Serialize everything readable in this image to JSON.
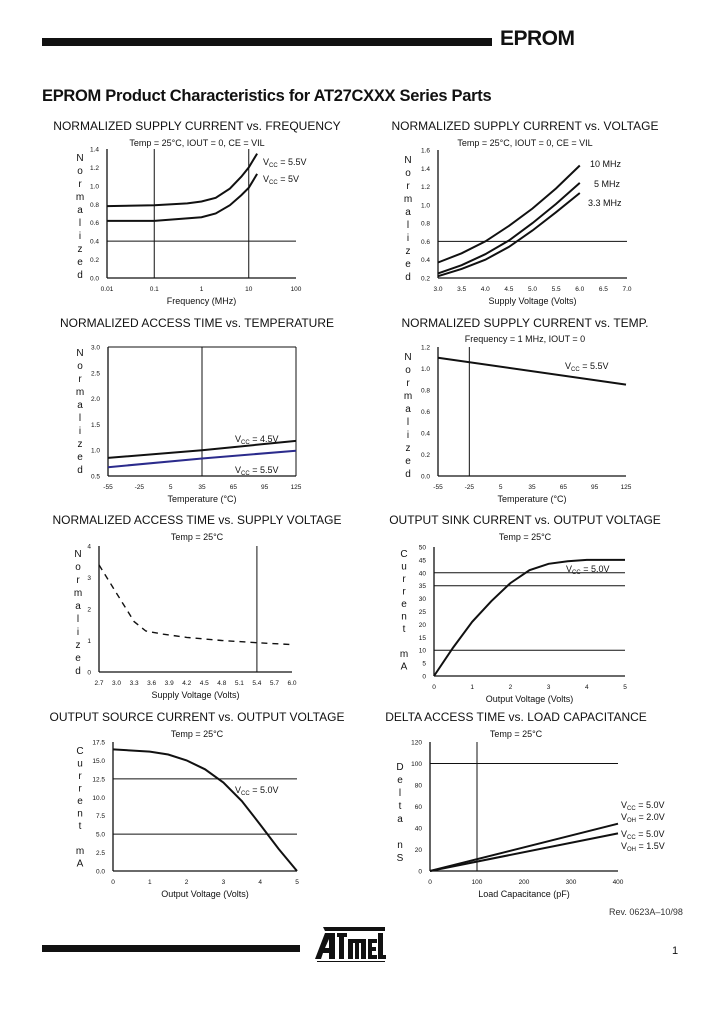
{
  "header": {
    "title": "EPROM"
  },
  "section_title": "EPROM Product Characteristics for AT27CXXX Series Parts",
  "footer": {
    "revision": "Rev. 0623A–10/98",
    "page_number": "1",
    "logo_text": "ATMEL"
  },
  "chart_data": [
    {
      "type": "line",
      "title": "NORMALIZED SUPPLY CURRENT vs. FREQUENCY",
      "subtitle": "Temp = 25°C, IOUT = 0, CE = VIL",
      "xlabel": "Frequency (MHz)",
      "ylabel": "Normalized",
      "xscale": "log",
      "xlim": [
        0.01,
        100
      ],
      "ylim": [
        0.0,
        1.4
      ],
      "xticks": [
        0.01,
        0.1,
        1,
        10,
        100
      ],
      "xtick_labels": [
        "0.01",
        "0.1",
        "1",
        "10",
        "100"
      ],
      "yticks": [
        0,
        0.2,
        0.4,
        0.6,
        0.8,
        1.0,
        1.2,
        1.4
      ],
      "ytick_labels": [
        "0.0",
        "0.2",
        "0.4",
        "0.6",
        "0.8",
        "1.0",
        "1.2",
        "1.4"
      ],
      "grid_x": [
        0.1,
        10
      ],
      "grid_y": [
        0.4
      ],
      "box": false,
      "series": [
        {
          "name": [
            "V",
            "CC",
            " = 5.5V"
          ],
          "points": [
            [
              0.01,
              0.78
            ],
            [
              0.1,
              0.79
            ],
            [
              0.5,
              0.81
            ],
            [
              1,
              0.83
            ],
            [
              2,
              0.87
            ],
            [
              4,
              0.97
            ],
            [
              7,
              1.1
            ],
            [
              10,
              1.2
            ],
            [
              15,
              1.35
            ]
          ]
        },
        {
          "name": [
            "V",
            "CC",
            " = 5V"
          ],
          "points": [
            [
              0.01,
              0.62
            ],
            [
              0.1,
              0.62
            ],
            [
              1,
              0.66
            ],
            [
              2,
              0.7
            ],
            [
              4,
              0.79
            ],
            [
              7,
              0.9
            ],
            [
              10,
              0.98
            ],
            [
              15,
              1.13
            ]
          ]
        }
      ]
    },
    {
      "type": "line",
      "title": "NORMALIZED SUPPLY CURRENT vs. VOLTAGE",
      "subtitle": "Temp = 25°C, IOUT = 0, CE = VIL",
      "xlabel": "Supply Voltage (Volts)",
      "ylabel": "Normalized",
      "xscale": "linear",
      "xlim": [
        3.0,
        7.0
      ],
      "ylim": [
        0.2,
        1.6
      ],
      "xticks": [
        3.0,
        3.5,
        4.0,
        4.5,
        5.0,
        5.5,
        6.0,
        6.5,
        7.0
      ],
      "xtick_labels": [
        "3.0",
        "3.5",
        "4.0",
        "4.5",
        "5.0",
        "5.5",
        "6.0",
        "6.5",
        "7.0"
      ],
      "yticks": [
        0.2,
        0.4,
        0.6,
        0.8,
        1.0,
        1.2,
        1.4,
        1.6
      ],
      "ytick_labels": [
        "0.2",
        "0.4",
        "0.6",
        "0.8",
        "1.0",
        "1.2",
        "1.4",
        "1.6"
      ],
      "grid_x": [],
      "grid_y": [
        0.6
      ],
      "box": false,
      "series": [
        {
          "name": [
            "10 MHz"
          ],
          "points": [
            [
              3.0,
              0.37
            ],
            [
              3.5,
              0.47
            ],
            [
              4.0,
              0.6
            ],
            [
              4.5,
              0.77
            ],
            [
              5.0,
              0.96
            ],
            [
              5.5,
              1.18
            ],
            [
              6.0,
              1.43
            ]
          ]
        },
        {
          "name": [
            "5 MHz"
          ],
          "points": [
            [
              3.0,
              0.25
            ],
            [
              3.5,
              0.34
            ],
            [
              4.0,
              0.46
            ],
            [
              4.5,
              0.61
            ],
            [
              5.0,
              0.8
            ],
            [
              5.5,
              1.01
            ],
            [
              6.0,
              1.24
            ]
          ]
        },
        {
          "name": [
            "3.3 MHz"
          ],
          "points": [
            [
              3.0,
              0.22
            ],
            [
              3.5,
              0.3
            ],
            [
              4.0,
              0.4
            ],
            [
              4.5,
              0.54
            ],
            [
              5.0,
              0.72
            ],
            [
              5.5,
              0.92
            ],
            [
              6.0,
              1.13
            ]
          ]
        }
      ]
    },
    {
      "type": "line",
      "title": "NORMALIZED ACCESS TIME vs. TEMPERATURE",
      "subtitle": "",
      "xlabel": "Temperature (°C)",
      "ylabel": "Normalized",
      "xscale": "linear",
      "xlim": [
        -55,
        125
      ],
      "ylim": [
        0.5,
        3.0
      ],
      "xticks": [
        -55,
        -25,
        5,
        35,
        65,
        95,
        125
      ],
      "xtick_labels": [
        "-55",
        "-25",
        "5",
        "35",
        "65",
        "95",
        "125"
      ],
      "yticks": [
        0.5,
        1.0,
        1.5,
        2.0,
        2.5,
        3.0
      ],
      "ytick_labels": [
        "0.5",
        "1.0",
        "1.5",
        "2.0",
        "2.5",
        "3.0"
      ],
      "grid_x": [
        35
      ],
      "grid_y": [],
      "box": true,
      "series": [
        {
          "name": [
            "V",
            "CC",
            " = 4.5V"
          ],
          "color": "#111111",
          "points": [
            [
              -55,
              0.85
            ],
            [
              35,
              1.0
            ],
            [
              125,
              1.18
            ]
          ]
        },
        {
          "name": [
            "V",
            "CC",
            " = 5.5V"
          ],
          "color": "#2b2b8c",
          "points": [
            [
              -55,
              0.67
            ],
            [
              35,
              0.84
            ],
            [
              125,
              0.99
            ]
          ]
        }
      ]
    },
    {
      "type": "line",
      "title": "NORMALIZED SUPPLY CURRENT vs. TEMP.",
      "subtitle": "Frequency = 1 MHz, IOUT = 0",
      "xlabel": "Temperature (°C)",
      "ylabel": "Normalized",
      "xscale": "linear",
      "xlim": [
        -55,
        125
      ],
      "ylim": [
        0.0,
        1.2
      ],
      "xticks": [
        -55,
        -25,
        5,
        35,
        65,
        95,
        125
      ],
      "xtick_labels": [
        "-55",
        "-25",
        "5",
        "35",
        "65",
        "95",
        "125"
      ],
      "yticks": [
        0,
        0.2,
        0.4,
        0.6,
        0.8,
        1.0,
        1.2
      ],
      "ytick_labels": [
        "0.0",
        "0.2",
        "0.4",
        "0.6",
        "0.8",
        "1.0",
        "1.2"
      ],
      "grid_x": [
        -25
      ],
      "grid_y": [],
      "box": false,
      "series": [
        {
          "name": [
            "V",
            "CC",
            " = 5.5V"
          ],
          "points": [
            [
              -55,
              1.1
            ],
            [
              125,
              0.85
            ]
          ]
        }
      ]
    },
    {
      "type": "line",
      "title": "NORMALIZED ACCESS TIME vs. SUPPLY VOLTAGE",
      "subtitle": "Temp = 25°C",
      "xlabel": "Supply Voltage (Volts)",
      "ylabel": "Normalized",
      "xscale": "linear",
      "xlim": [
        2.7,
        6.0
      ],
      "ylim": [
        0,
        4
      ],
      "xticks": [
        2.7,
        3.0,
        3.3,
        3.6,
        3.9,
        4.2,
        4.5,
        4.8,
        5.1,
        5.4,
        5.7,
        6.0
      ],
      "xtick_labels": [
        "2.7",
        "3.0",
        "3.3",
        "3.6",
        "3.9",
        "4.2",
        "4.5",
        "4.8",
        "5.1",
        "5.4",
        "5.7",
        "6.0"
      ],
      "yticks": [
        0,
        1,
        2,
        3,
        4
      ],
      "ytick_labels": [
        "0",
        "1",
        "2",
        "3",
        "4"
      ],
      "grid_x": [
        5.4
      ],
      "grid_y": [],
      "box": false,
      "dashed": true,
      "series": [
        {
          "points": [
            [
              2.7,
              3.4
            ],
            [
              2.9,
              2.8
            ],
            [
              3.1,
              2.2
            ],
            [
              3.3,
              1.6
            ],
            [
              3.5,
              1.3
            ],
            [
              3.8,
              1.2
            ],
            [
              4.2,
              1.1
            ],
            [
              4.8,
              1.0
            ],
            [
              5.4,
              0.93
            ],
            [
              6.0,
              0.87
            ]
          ]
        }
      ]
    },
    {
      "type": "line",
      "title": "OUTPUT SINK CURRENT vs. OUTPUT VOLTAGE",
      "subtitle": "Temp = 25°C",
      "xlabel": "Output Voltage (Volts)",
      "ylabel": "Current mA",
      "xscale": "linear",
      "xlim": [
        0,
        5
      ],
      "ylim": [
        0,
        50
      ],
      "xticks": [
        0,
        1,
        2,
        3,
        4,
        5
      ],
      "xtick_labels": [
        "0",
        "1",
        "2",
        "3",
        "4",
        "5"
      ],
      "yticks": [
        0,
        5,
        10,
        15,
        20,
        25,
        30,
        35,
        40,
        45,
        50
      ],
      "ytick_labels": [
        "0",
        "5",
        "10",
        "15",
        "20",
        "25",
        "30",
        "35",
        "40",
        "45",
        "50"
      ],
      "grid_x": [],
      "grid_y": [
        10,
        35,
        40
      ],
      "box": false,
      "series": [
        {
          "name": [
            "V",
            "CC",
            " = 5.0V"
          ],
          "points": [
            [
              0,
              0
            ],
            [
              0.5,
              11
            ],
            [
              1,
              21
            ],
            [
              1.5,
              29
            ],
            [
              2,
              36
            ],
            [
              2.5,
              41
            ],
            [
              3,
              43.5
            ],
            [
              3.5,
              44.5
            ],
            [
              4,
              45
            ],
            [
              5,
              45
            ]
          ]
        }
      ]
    },
    {
      "type": "line",
      "title": "OUTPUT SOURCE CURRENT vs. OUTPUT VOLTAGE",
      "subtitle": "Temp = 25°C",
      "xlabel": "Output Voltage (Volts)",
      "ylabel": "Current mA",
      "xscale": "linear",
      "xlim": [
        0,
        5
      ],
      "ylim": [
        0,
        17.5
      ],
      "xticks": [
        0,
        1,
        2,
        3,
        4,
        5
      ],
      "xtick_labels": [
        "0",
        "1",
        "2",
        "3",
        "4",
        "5"
      ],
      "yticks": [
        0,
        2.5,
        5,
        7.5,
        10,
        12.5,
        15,
        17.5
      ],
      "ytick_labels": [
        "0.0",
        "2.5",
        "5.0",
        "7.5",
        "10.0",
        "12.5",
        "15.0",
        "17.5"
      ],
      "grid_x": [],
      "grid_y": [
        5,
        12.5
      ],
      "box": false,
      "series": [
        {
          "name": [
            "V",
            "CC",
            " = 5.0V"
          ],
          "points": [
            [
              0,
              16.5
            ],
            [
              1,
              16.2
            ],
            [
              1.5,
              15.8
            ],
            [
              2,
              15
            ],
            [
              2.5,
              13.8
            ],
            [
              3,
              12
            ],
            [
              3.5,
              9.5
            ],
            [
              4,
              6.3
            ],
            [
              4.5,
              3
            ],
            [
              5,
              0
            ]
          ]
        }
      ]
    },
    {
      "type": "line",
      "title": "DELTA ACCESS TIME vs. LOAD CAPACITANCE",
      "subtitle": "Temp = 25°C",
      "xlabel": "Load Capacitance (pF)",
      "ylabel": "Delta nS",
      "xscale": "linear",
      "xlim": [
        0,
        400
      ],
      "ylim": [
        0,
        120
      ],
      "xticks": [
        0,
        100,
        200,
        300,
        400
      ],
      "xtick_labels": [
        "0",
        "100",
        "200",
        "300",
        "400"
      ],
      "yticks": [
        0,
        20,
        40,
        60,
        80,
        100,
        120
      ],
      "ytick_labels": [
        "0",
        "20",
        "40",
        "60",
        "80",
        "100",
        "120"
      ],
      "grid_x": [
        100
      ],
      "grid_y": [
        100
      ],
      "box": false,
      "series": [
        {
          "name": [
            "V",
            "CC",
            " = 5.0V"
          ],
          "name2": [
            "V",
            "OH",
            " = 2.0V"
          ],
          "points": [
            [
              0,
              0
            ],
            [
              400,
              44
            ]
          ]
        },
        {
          "name": [
            "V",
            "CC",
            " = 5.0V"
          ],
          "name2": [
            "V",
            "OH",
            " = 1.5V"
          ],
          "points": [
            [
              0,
              0
            ],
            [
              400,
              35
            ]
          ]
        }
      ]
    }
  ]
}
